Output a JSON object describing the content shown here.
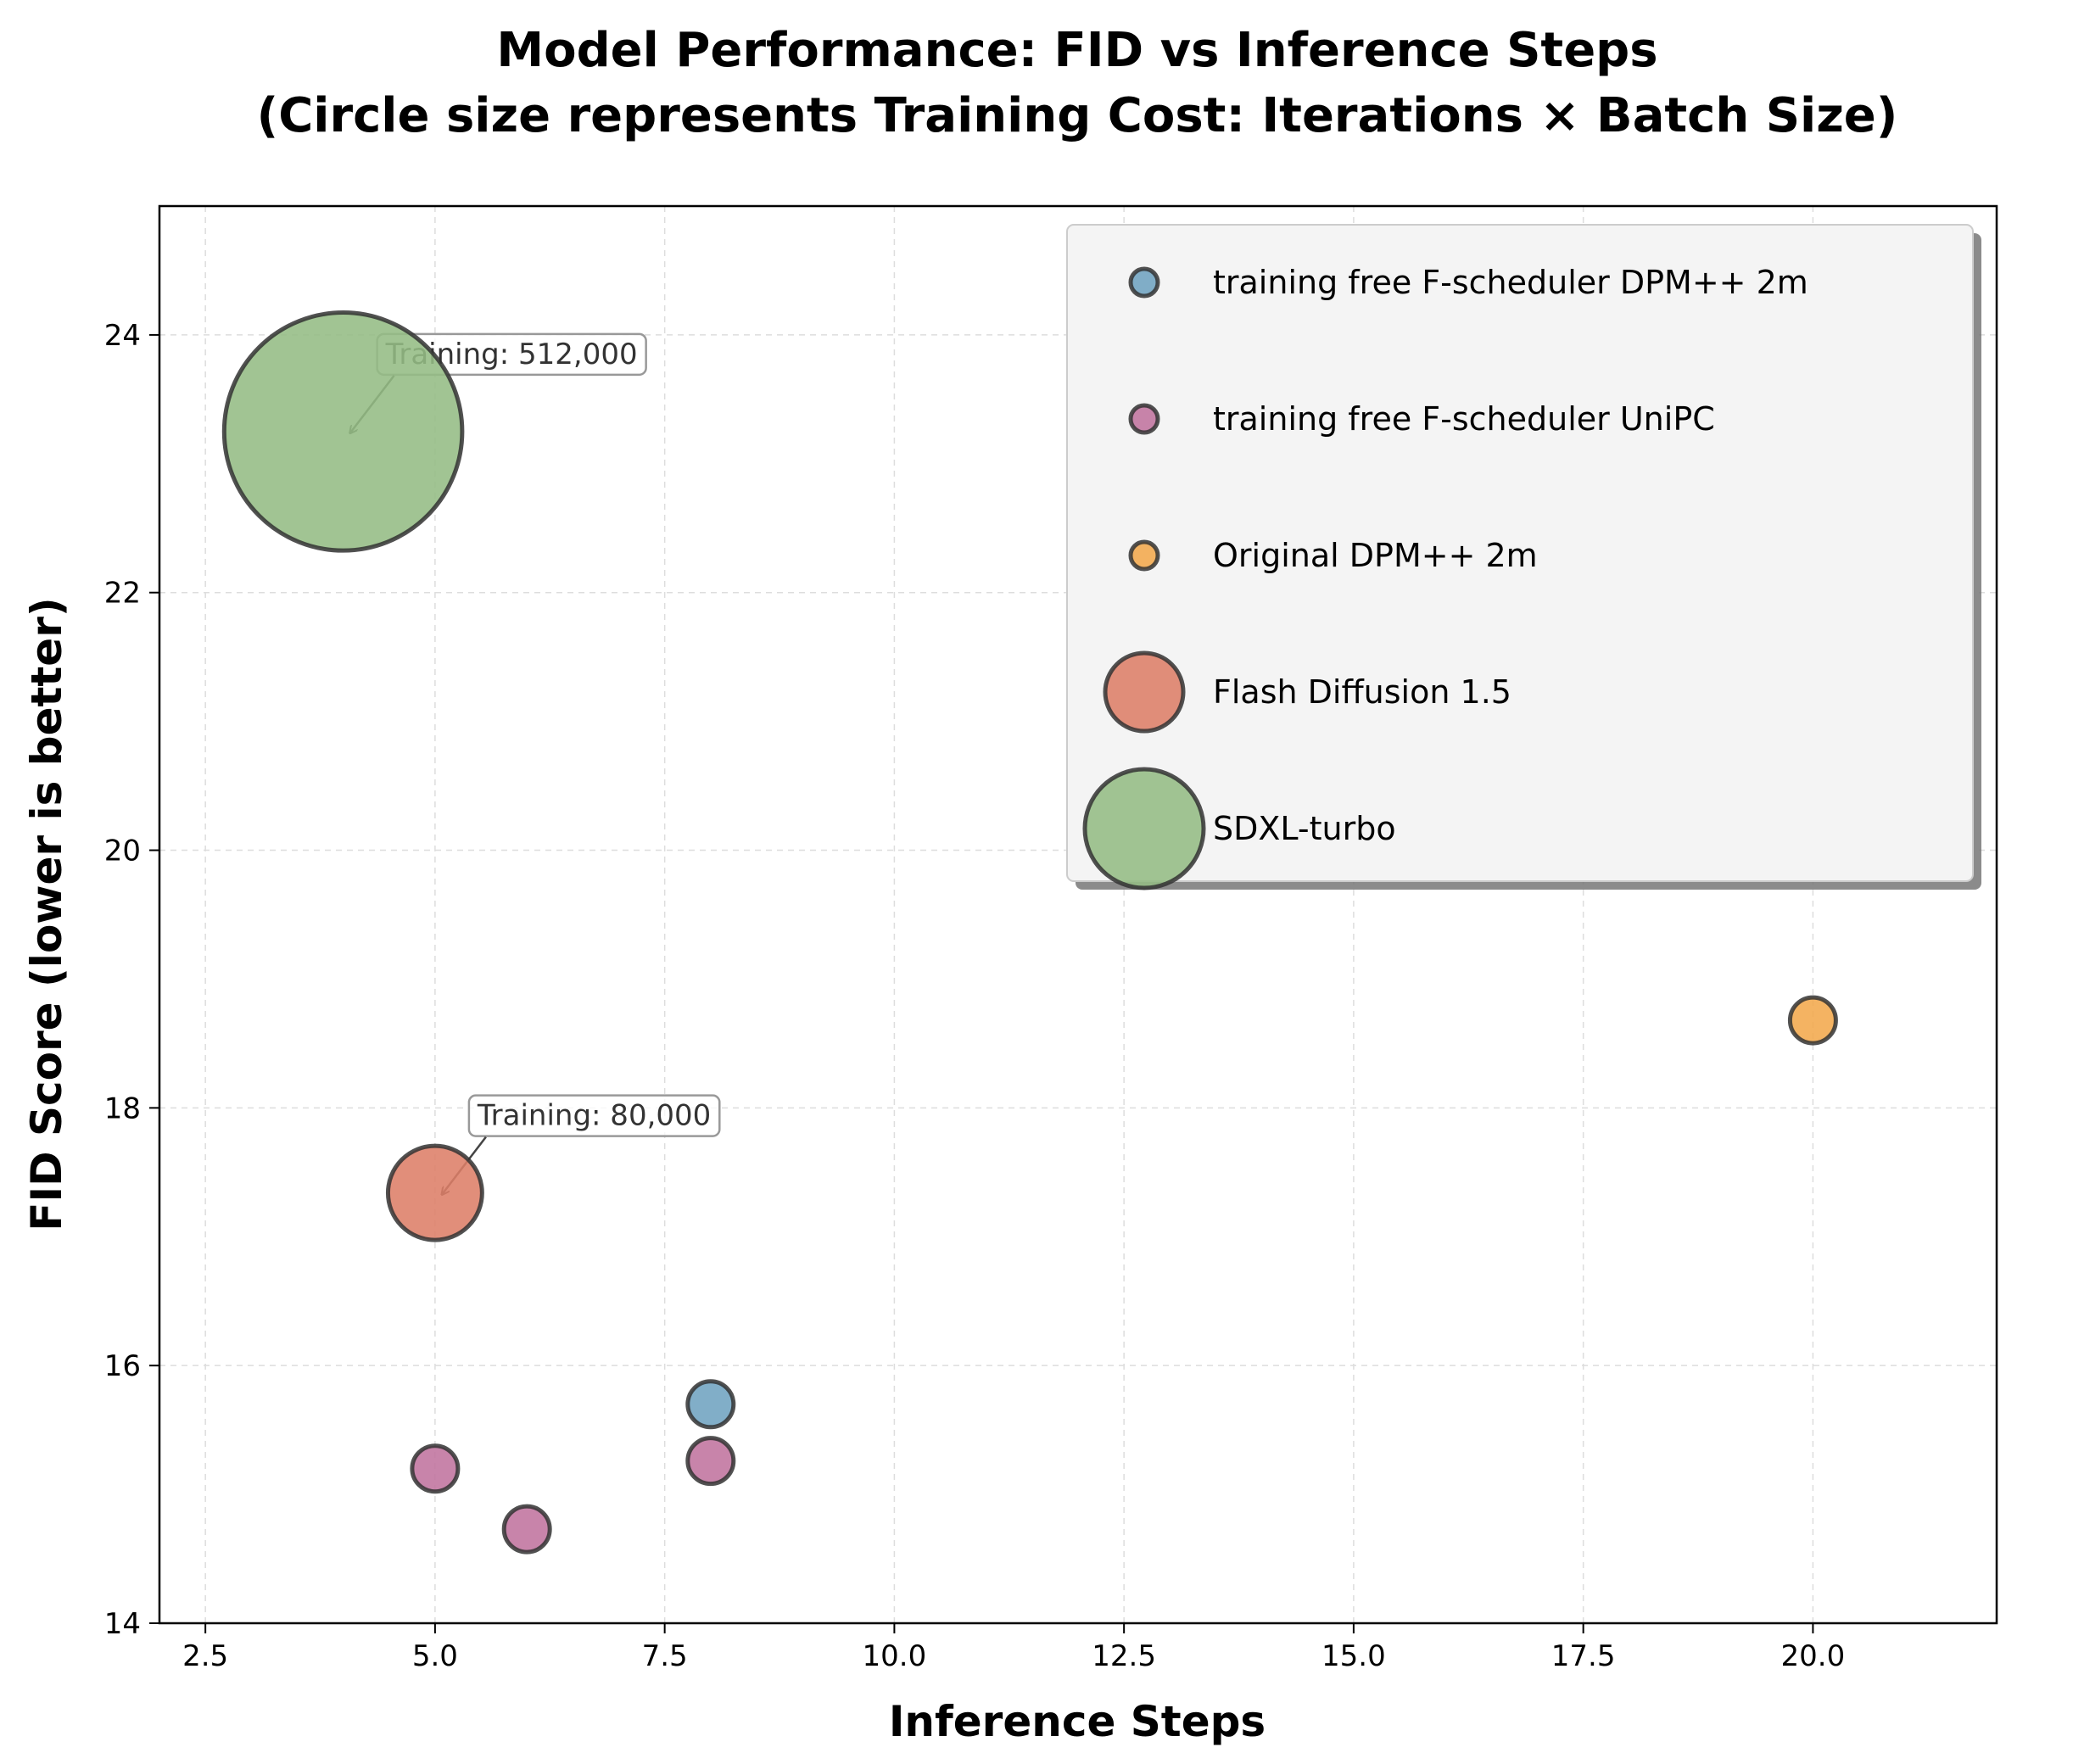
{
  "chart_data": {
    "type": "scatter",
    "title_line1": "Model Performance: FID vs Inference Steps",
    "title_line2": "(Circle size represents Training Cost: Iterations × Batch Size)",
    "xlabel": "Inference Steps",
    "ylabel": "FID Score (lower is better)",
    "xlim": [
      2.0,
      22.0
    ],
    "ylim": [
      14,
      25
    ],
    "xticks": [
      2.5,
      5.0,
      7.5,
      10.0,
      12.5,
      15.0,
      17.5,
      20.0
    ],
    "xtick_labels": [
      "2.5",
      "5.0",
      "7.5",
      "10.0",
      "12.5",
      "15.0",
      "17.5",
      "20.0"
    ],
    "yticks": [
      14,
      16,
      18,
      20,
      22,
      24
    ],
    "ytick_labels": [
      "14",
      "16",
      "18",
      "20",
      "22",
      "24"
    ],
    "grid": true,
    "legend_position": "top-right",
    "series": [
      {
        "name": "training free F-scheduler DPM++ 2m",
        "color": "#6FA3C0",
        "points": [
          {
            "x": 8,
            "y": 15.7
          }
        ]
      },
      {
        "name": "training free F-scheduler UniPC",
        "color": "#C0739E",
        "points": [
          {
            "x": 5,
            "y": 15.2
          },
          {
            "x": 6,
            "y": 14.73
          },
          {
            "x": 8,
            "y": 15.26
          }
        ]
      },
      {
        "name": "Original DPM++ 2m",
        "color": "#F2A94C",
        "points": [
          {
            "x": 20,
            "y": 18.68
          }
        ]
      },
      {
        "name": "Flash Diffusion 1.5",
        "color": "#DD7E68",
        "training_cost": 80000,
        "points": [
          {
            "x": 5,
            "y": 17.34
          }
        ]
      },
      {
        "name": "SDXL-turbo",
        "color": "#94BC84",
        "training_cost": 512000,
        "points": [
          {
            "x": 4,
            "y": 23.25
          }
        ]
      }
    ],
    "annotations": [
      {
        "text": "Training: 512,000",
        "x": 4,
        "y": 23.25
      },
      {
        "text": "Training: 80,000",
        "x": 5,
        "y": 17.34
      }
    ]
  }
}
